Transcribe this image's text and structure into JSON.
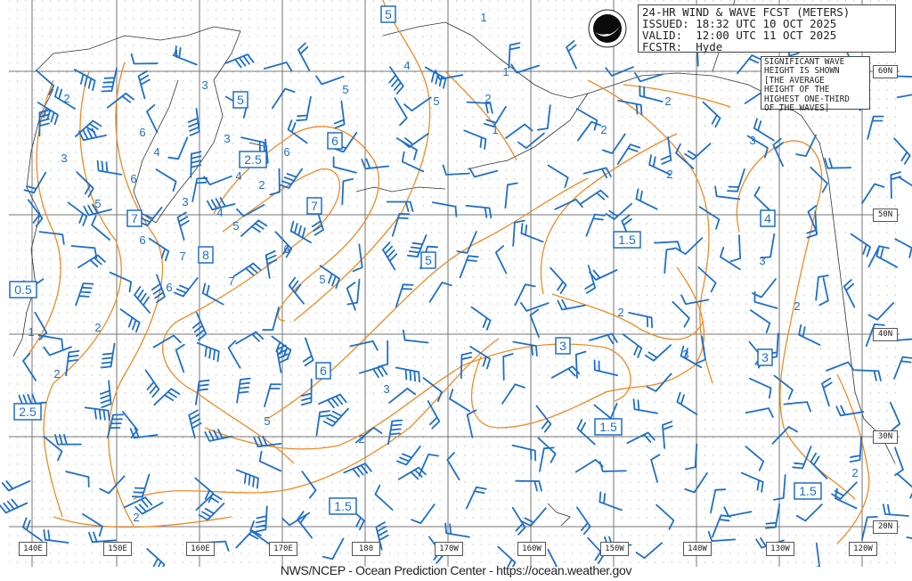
{
  "header": {
    "title": "24-HR WIND & WAVE FCST (METERS)",
    "issued": "ISSUED: 18:32 UTC 10 OCT 2025",
    "valid": "VALID:  12:00 UTC 11 OCT 2025",
    "forecaster": "FCSTR:  Hyde",
    "logo_text": "NOAA"
  },
  "legend_note": [
    "SIGNIFICANT WAVE",
    "HEIGHT IS SHOWN",
    "[THE AVERAGE",
    "HEIGHT OF THE",
    "HIGHEST ONE-THIRD",
    "OF THE WAVES]"
  ],
  "latitude_labels": [
    "60N",
    "50N",
    "40N",
    "30N",
    "20N"
  ],
  "longitude_labels": [
    "140E",
    "150E",
    "160E",
    "170E",
    "180",
    "170W",
    "160W",
    "150W",
    "140W",
    "130W",
    "120W"
  ],
  "wave_height_boxes": [
    "5",
    "5",
    "6",
    "2.5",
    "7",
    "7",
    "8",
    "4",
    "1.5",
    "5",
    "0.5",
    "3",
    "6",
    "3",
    "2.5",
    "1.5",
    "1.5",
    "1.5"
  ],
  "contour_labels": [
    "1",
    "2",
    "1",
    "2",
    "1",
    "2",
    "3",
    "3",
    "2",
    "3",
    "4",
    "4",
    "6",
    "5",
    "3",
    "4",
    "3",
    "5",
    "4",
    "5",
    "6",
    "5",
    "6",
    "7",
    "7",
    "6",
    "6",
    "5",
    "1",
    "2",
    "2",
    "2",
    "2",
    "3",
    "2",
    "3",
    "5",
    "2",
    "2",
    "2",
    "2",
    "3",
    "4",
    "6"
  ],
  "footer": "NWS/NCEP - Ocean Prediction Center - https://ocean.weather.gov",
  "colors": {
    "wind_barbs": "#1f6fc9",
    "wave_contours": "#f08a24",
    "grid": "#777777",
    "coastline": "#333333",
    "labels": "#1f6fc9"
  }
}
